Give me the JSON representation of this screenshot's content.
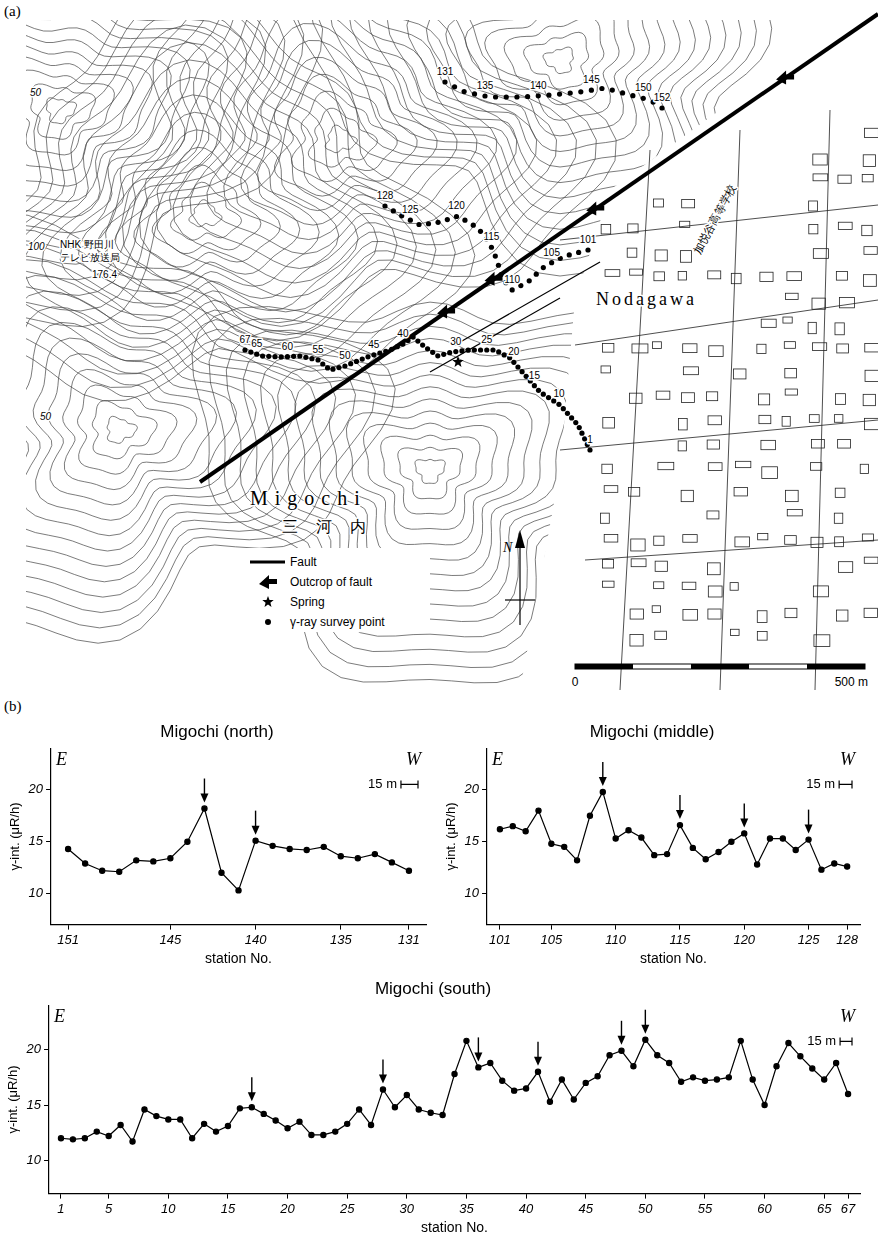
{
  "figure_labels": [
    "(a)",
    "(b)"
  ],
  "map": {
    "place_labels": {
      "migochi": "Migochi",
      "migochi_kanji": "三河内",
      "nodagawa": "Nodagawa",
      "tv_station": [
        "NHK 野田川",
        "テレビ放送局"
      ],
      "school": "加悦谷高等学校"
    },
    "elevation": 176.4,
    "contour_labels": [
      50,
      100,
      50
    ],
    "key": [
      "Fault",
      "Outcrop of fault",
      "Spring",
      "γ-ray survey point"
    ],
    "north": "N",
    "scale_labels": [
      "0",
      "500 m"
    ],
    "routes": [
      {
        "first": 1,
        "last": 67,
        "labels": [
          1,
          10,
          15,
          20,
          25,
          30,
          40,
          45,
          50,
          55,
          60,
          65,
          67
        ]
      },
      {
        "first": 101,
        "last": 128,
        "labels": [
          101,
          105,
          110,
          115,
          120,
          125,
          128
        ]
      },
      {
        "first": 131,
        "last": 152,
        "labels": [
          131,
          135,
          140,
          145,
          150,
          152
        ]
      }
    ]
  },
  "chart_data": [
    {
      "type": "line",
      "title": "Migochi (north)",
      "x_label": "station No.",
      "y_label": "γ-int. (μR/h)",
      "x": [
        151,
        150,
        149,
        148,
        147,
        146,
        145,
        144,
        143,
        142,
        141,
        140,
        139,
        138,
        137,
        136,
        135,
        134,
        133,
        132,
        131
      ],
      "values": [
        14.3,
        12.9,
        12.2,
        12.1,
        13.2,
        13.1,
        13.4,
        15.0,
        18.2,
        12.0,
        10.3,
        15.1,
        14.6,
        14.3,
        14.2,
        14.5,
        13.6,
        13.4,
        13.8,
        13.0,
        12.2
      ],
      "xlim": [
        152,
        130
      ],
      "xticks": [
        151,
        145,
        140,
        135,
        131
      ],
      "ylim": [
        7,
        24
      ],
      "yticks": [
        10,
        15,
        20
      ],
      "grid": false,
      "marker": "circle",
      "color": "#000000",
      "arrows": [
        143,
        140
      ],
      "left_label": "E",
      "right_label": "W",
      "scale_bar": "15 m"
    },
    {
      "type": "line",
      "title": "Migochi (middle)",
      "x_label": "station No.",
      "y_label": "γ-int. (μR/h)",
      "x": [
        101,
        102,
        103,
        104,
        105,
        106,
        107,
        108,
        109,
        110,
        111,
        112,
        113,
        114,
        115,
        116,
        117,
        118,
        119,
        120,
        121,
        122,
        123,
        124,
        125,
        126,
        127,
        128
      ],
      "values": [
        16.2,
        16.5,
        16.0,
        18.0,
        14.8,
        14.5,
        13.2,
        17.5,
        19.8,
        15.3,
        16.1,
        15.4,
        13.7,
        13.8,
        16.6,
        14.4,
        13.3,
        14.0,
        15.0,
        15.8,
        12.8,
        15.3,
        15.3,
        14.2,
        15.2,
        12.3,
        12.9,
        12.6
      ],
      "xlim": [
        100,
        129
      ],
      "xticks": [
        101,
        105,
        110,
        115,
        120,
        125,
        128
      ],
      "ylim": [
        7,
        24
      ],
      "yticks": [
        10,
        15,
        20
      ],
      "grid": false,
      "marker": "circle",
      "color": "#000000",
      "arrows": [
        109,
        115,
        120,
        125
      ],
      "left_label": "E",
      "right_label": "W",
      "scale_bar": "15 m"
    },
    {
      "type": "line",
      "title": "Migochi (south)",
      "x_label": "station No.",
      "y_label": "γ-int. (μR/h)",
      "x": [
        1,
        2,
        3,
        4,
        5,
        6,
        7,
        8,
        9,
        10,
        11,
        12,
        13,
        14,
        15,
        16,
        17,
        18,
        19,
        20,
        21,
        22,
        23,
        24,
        25,
        26,
        27,
        28,
        29,
        30,
        31,
        32,
        33,
        34,
        35,
        36,
        37,
        38,
        39,
        40,
        41,
        42,
        43,
        44,
        45,
        46,
        47,
        48,
        49,
        50,
        51,
        52,
        53,
        54,
        55,
        56,
        57,
        58,
        59,
        60,
        61,
        62,
        63,
        64,
        65,
        66,
        67
      ],
      "values": [
        12.0,
        11.9,
        12.0,
        12.6,
        12.2,
        13.2,
        11.7,
        14.6,
        14.0,
        13.7,
        13.7,
        12.0,
        13.3,
        12.6,
        13.1,
        14.7,
        14.8,
        14.2,
        13.6,
        12.9,
        13.5,
        12.3,
        12.3,
        12.6,
        13.3,
        14.6,
        13.2,
        16.4,
        14.8,
        15.9,
        14.6,
        14.3,
        14.1,
        17.8,
        20.8,
        18.4,
        18.8,
        17.2,
        16.3,
        16.5,
        18.0,
        15.3,
        17.3,
        15.5,
        17.0,
        17.6,
        19.5,
        19.9,
        18.5,
        20.9,
        19.5,
        18.8,
        17.1,
        17.5,
        17.2,
        17.3,
        17.5,
        20.8,
        17.3,
        15.0,
        18.5,
        20.6,
        19.4,
        18.3,
        17.3,
        18.8,
        16.0
      ],
      "xlim": [
        0,
        68
      ],
      "xticks": [
        1,
        5,
        10,
        15,
        20,
        25,
        30,
        35,
        40,
        45,
        50,
        55,
        60,
        65,
        67
      ],
      "ylim": [
        7,
        24
      ],
      "yticks": [
        10,
        15,
        20
      ],
      "grid": false,
      "marker": "circle",
      "color": "#000000",
      "arrows": [
        17,
        28,
        36,
        41,
        48,
        50
      ],
      "left_label": "E",
      "right_label": "W",
      "scale_bar": "15 m"
    }
  ]
}
